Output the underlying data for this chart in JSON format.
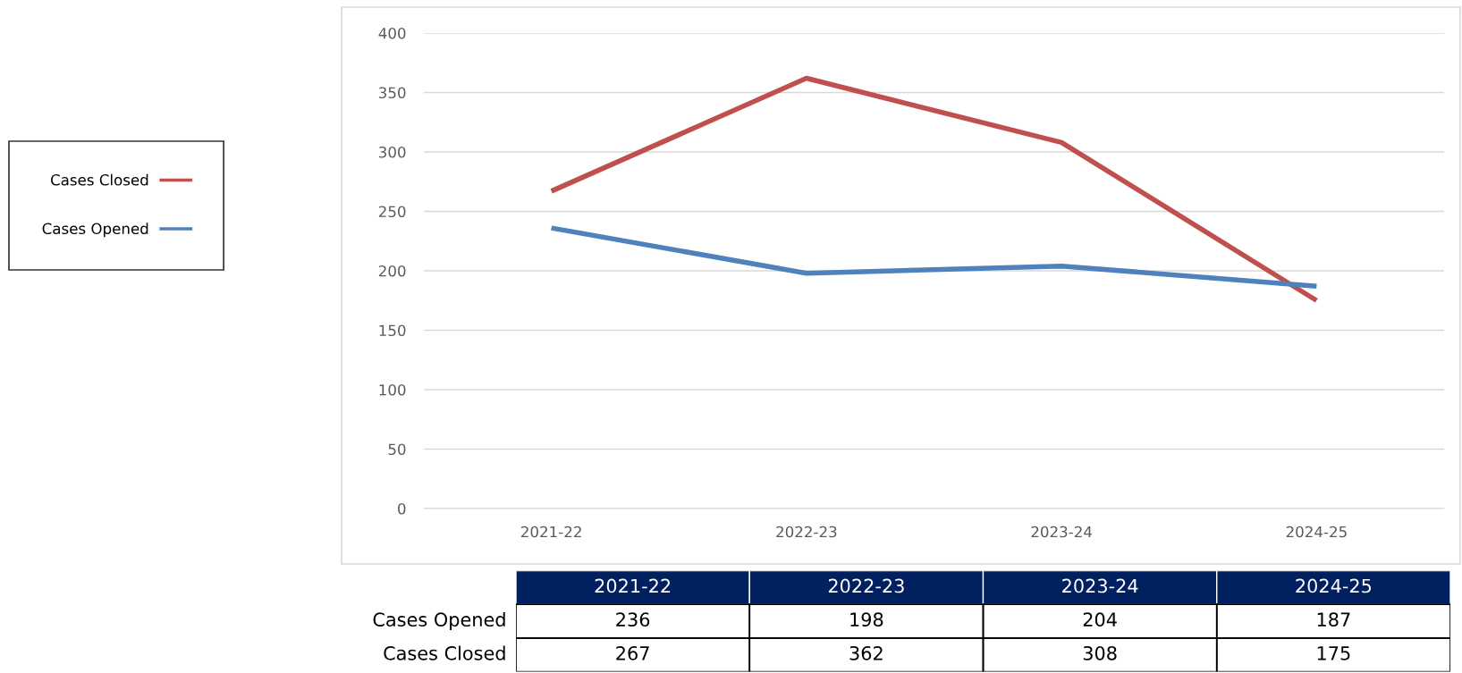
{
  "chart_data": {
    "type": "line",
    "categories": [
      "2021-22",
      "2022-23",
      "2023-24",
      "2024-25"
    ],
    "series": [
      {
        "name": "Cases Closed",
        "color": "#c0504d",
        "values": [
          267,
          362,
          308,
          175
        ]
      },
      {
        "name": "Cases Opened",
        "color": "#4f81bd",
        "values": [
          236,
          198,
          204,
          187
        ]
      }
    ],
    "ylim": [
      0,
      400
    ],
    "yticks": [
      0,
      50,
      100,
      150,
      200,
      250,
      300,
      350,
      400
    ],
    "grid": "y",
    "legend": "left",
    "marker": "none",
    "line_style": "solid",
    "data_labels": true
  }
}
